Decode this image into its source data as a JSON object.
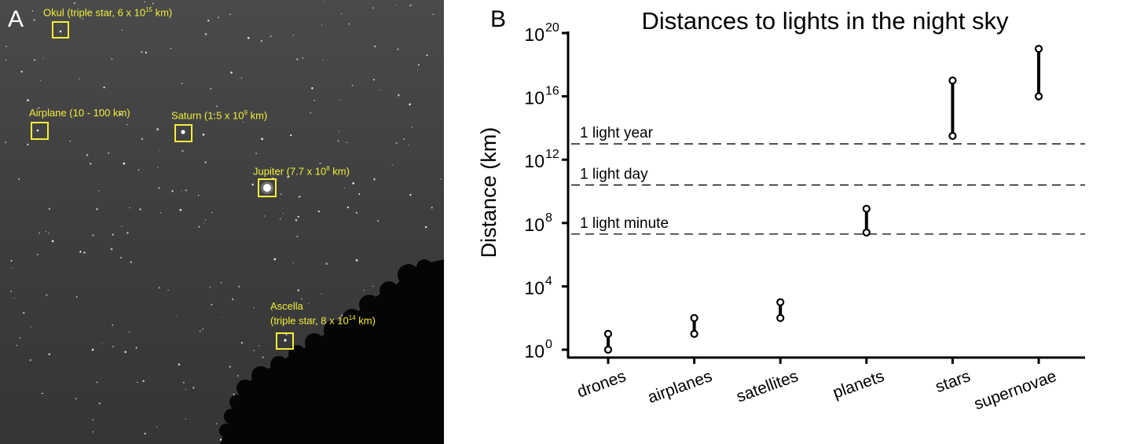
{
  "panel_a": {
    "letter": "A",
    "objects": [
      {
        "id": "okul",
        "lines": [
          "Okul (triple star, 6 x 10",
          "15",
          " km)"
        ]
      },
      {
        "id": "airplane",
        "lines": [
          "Airplane (10 - 100 km)"
        ]
      },
      {
        "id": "saturn",
        "lines": [
          "Saturn (1.5 x 10",
          "9",
          " km)"
        ]
      },
      {
        "id": "jupiter",
        "lines": [
          "Jupiter (7.7 x 10",
          "8",
          " km)"
        ]
      },
      {
        "id": "ascella",
        "line1": "Ascella",
        "lines": [
          "(triple star, 8 x 10",
          "14",
          " km)"
        ]
      }
    ],
    "box_color": "#f3ee3a"
  },
  "panel_b": {
    "letter": "B"
  },
  "chart_data": {
    "type": "range",
    "title": "Distances to lights in the night sky",
    "ylabel": "Distance (km)",
    "xlabel": "",
    "yscale": "log10",
    "ylim_exponent": [
      0,
      20
    ],
    "yticks": [
      {
        "base": "10",
        "exp": "0",
        "value_exp": 0
      },
      {
        "base": "10",
        "exp": "4",
        "value_exp": 4
      },
      {
        "base": "10",
        "exp": "8",
        "value_exp": 8
      },
      {
        "base": "10",
        "exp": "12",
        "value_exp": 12
      },
      {
        "base": "10",
        "exp": "16",
        "value_exp": 16
      },
      {
        "base": "10",
        "exp": "20",
        "value_exp": 20
      }
    ],
    "categories": [
      "drones",
      "airplanes",
      "satellites",
      "planets",
      "stars",
      "supernovae"
    ],
    "ranges_log10_km": [
      {
        "low": 0,
        "high": 1
      },
      {
        "low": 1,
        "high": 2
      },
      {
        "low": 2,
        "high": 3
      },
      {
        "low": 7.4,
        "high": 8.9
      },
      {
        "low": 13.5,
        "high": 17
      },
      {
        "low": 16,
        "high": 19
      }
    ],
    "reference_lines": [
      {
        "label": "1 light year",
        "log10_km": 13
      },
      {
        "label": "1 light day",
        "log10_km": 10.4
      },
      {
        "label": "1 light minute",
        "log10_km": 7.3
      }
    ],
    "grid": false,
    "legend": "none"
  }
}
